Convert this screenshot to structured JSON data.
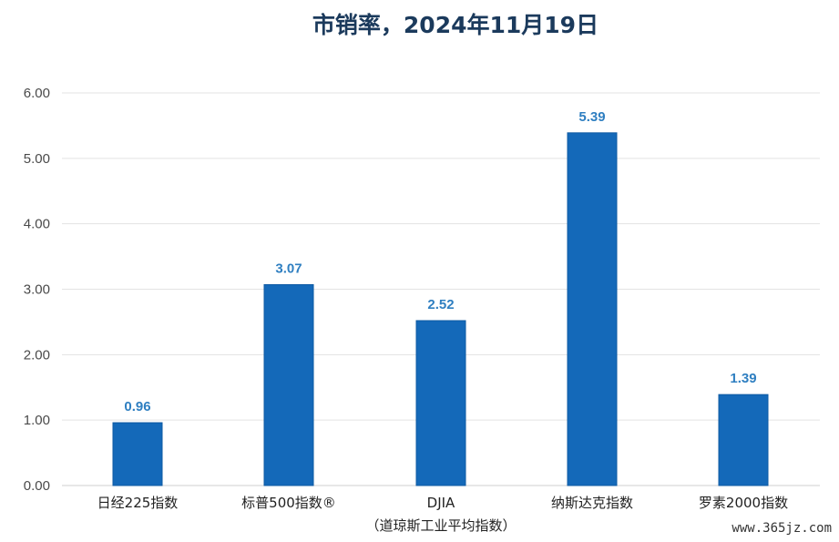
{
  "colors": {
    "bar": "#1469b9",
    "bar_edge": "#0e5aa3",
    "data_label": "#2f7fc1",
    "title": "#1b3a5c"
  },
  "watermark": "www.365jz.com",
  "chart_data": {
    "type": "bar",
    "title": "市销率，2024年11月19日",
    "xlabel": "",
    "ylabel": "",
    "ylim": [
      0,
      6
    ],
    "yticks": [
      "0.00",
      "1.00",
      "2.00",
      "3.00",
      "4.00",
      "5.00",
      "6.00"
    ],
    "grid": true,
    "legend": "none",
    "categories": [
      "日经225指数",
      "标普500指数®",
      "DJIA",
      "纳斯达克指数",
      "罗素2000指数"
    ],
    "category_subtitles": [
      "",
      "",
      "（道琼斯工业平均指数）",
      "",
      ""
    ],
    "values": [
      0.96,
      3.07,
      2.52,
      5.39,
      1.39
    ],
    "data_labels": [
      "0.96",
      "3.07",
      "2.52",
      "5.39",
      "1.39"
    ]
  }
}
